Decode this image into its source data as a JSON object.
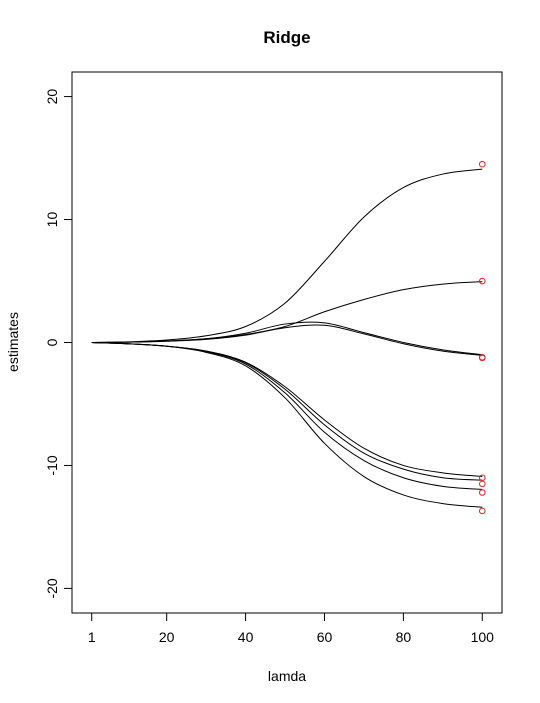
{
  "chart_data": {
    "type": "line",
    "title": "Ridge",
    "xlabel": "lamda",
    "ylabel": "estimates",
    "xlim": [
      -4,
      105
    ],
    "ylim": [
      -22,
      22
    ],
    "xticks": [
      1,
      20,
      40,
      60,
      80,
      100
    ],
    "yticks": [
      -20,
      -10,
      0,
      10,
      20
    ],
    "grid": false,
    "legend": "none",
    "line_color": "#000000",
    "marker_color": "#d62728",
    "x": [
      1,
      10,
      20,
      30,
      40,
      50,
      60,
      70,
      80,
      90,
      100
    ],
    "series": [
      {
        "values": [
          0,
          0.05,
          0.2,
          0.55,
          1.3,
          3.2,
          6.6,
          10.2,
          12.6,
          13.7,
          14.1
        ],
        "endpoint": 14.5
      },
      {
        "values": [
          0,
          0.03,
          0.12,
          0.3,
          0.65,
          1.3,
          2.5,
          3.5,
          4.3,
          4.75,
          4.95
        ],
        "endpoint": 5.0
      },
      {
        "values": [
          0,
          0.03,
          0.12,
          0.3,
          0.75,
          1.5,
          1.6,
          0.8,
          0.0,
          -0.6,
          -1.0
        ],
        "endpoint": -1.2
      },
      {
        "values": [
          0,
          0.03,
          0.1,
          0.25,
          0.6,
          1.2,
          1.4,
          0.7,
          -0.1,
          -0.7,
          -1.05
        ],
        "endpoint": -1.25
      },
      {
        "values": [
          0,
          -0.1,
          -0.3,
          -0.7,
          -1.6,
          -3.6,
          -6.3,
          -8.6,
          -10.0,
          -10.6,
          -10.9
        ],
        "endpoint": -11.0
      },
      {
        "values": [
          0,
          -0.1,
          -0.3,
          -0.7,
          -1.65,
          -3.8,
          -6.7,
          -9.0,
          -10.3,
          -11.0,
          -11.2
        ],
        "endpoint": -11.5
      },
      {
        "values": [
          0,
          -0.1,
          -0.3,
          -0.75,
          -1.75,
          -4.1,
          -7.3,
          -9.6,
          -11.0,
          -11.7,
          -11.95
        ],
        "endpoint": -12.2
      },
      {
        "values": [
          0,
          -0.1,
          -0.3,
          -0.8,
          -1.9,
          -4.5,
          -8.2,
          -10.9,
          -12.4,
          -13.1,
          -13.4
        ],
        "endpoint": -13.7
      }
    ]
  }
}
